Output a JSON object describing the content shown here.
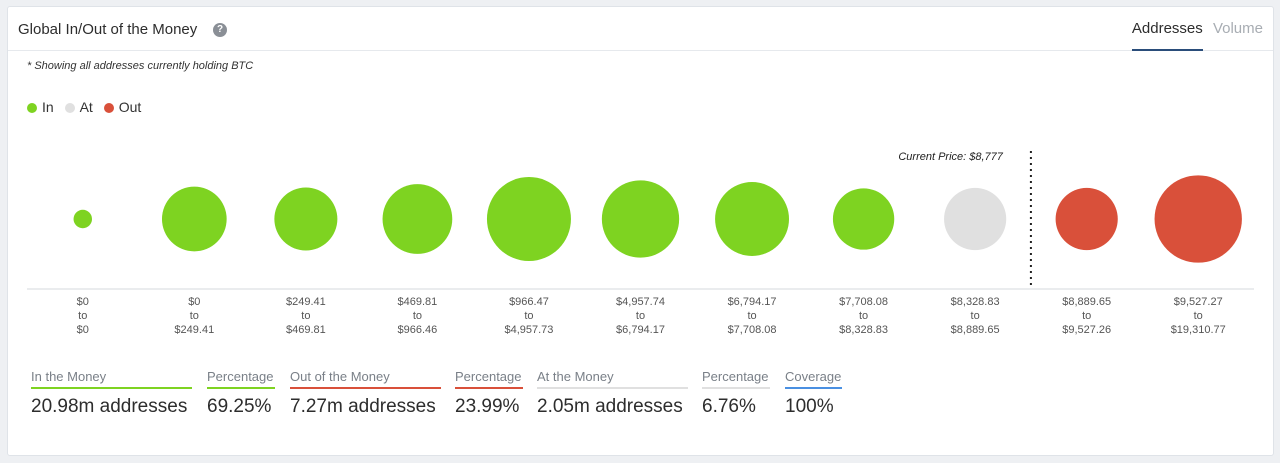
{
  "header": {
    "title": "Global In/Out of the Money",
    "help_icon": "question-circle-icon",
    "tabs": [
      {
        "label": "Addresses",
        "active": true
      },
      {
        "label": "Volume",
        "active": false
      }
    ]
  },
  "note": "* Showing all addresses currently holding BTC",
  "legend": [
    {
      "label": "In",
      "color": "#7ed321"
    },
    {
      "label": "At",
      "color": "#e0e0e0"
    },
    {
      "label": "Out",
      "color": "#d9503a"
    }
  ],
  "current_price_label": "Current Price: $8,777",
  "chart_data": {
    "type": "scatter",
    "encoding": "bubble size = relative number of addresses per price range",
    "current_price": 8777,
    "categories": [
      {
        "from": "$0",
        "to": "$0",
        "status": "In",
        "relative_size": 0.22
      },
      {
        "from": "$0",
        "to": "$249.41",
        "status": "In",
        "relative_size": 0.77
      },
      {
        "from": "$249.41",
        "to": "$469.81",
        "status": "In",
        "relative_size": 0.75
      },
      {
        "from": "$469.81",
        "to": "$966.46",
        "status": "In",
        "relative_size": 0.83
      },
      {
        "from": "$966.47",
        "to": "$4,957.73",
        "status": "In",
        "relative_size": 1.0
      },
      {
        "from": "$4,957.74",
        "to": "$6,794.17",
        "status": "In",
        "relative_size": 0.92
      },
      {
        "from": "$6,794.17",
        "to": "$7,708.08",
        "status": "In",
        "relative_size": 0.88
      },
      {
        "from": "$7,708.08",
        "to": "$8,328.83",
        "status": "In",
        "relative_size": 0.73
      },
      {
        "from": "$8,328.83",
        "to": "$8,889.65",
        "status": "At",
        "relative_size": 0.74
      },
      {
        "from": "$8,889.65",
        "to": "$9,527.26",
        "status": "Out",
        "relative_size": 0.74
      },
      {
        "from": "$9,527.27",
        "to": "$19,310.77",
        "status": "Out",
        "relative_size": 1.04
      }
    ],
    "to_word": "to",
    "colors": {
      "In": "#7ed321",
      "At": "#e0e0e0",
      "Out": "#d9503a"
    }
  },
  "summary": [
    {
      "label": "In the Money",
      "value": "20.98m addresses",
      "color": "#7ed321"
    },
    {
      "label": "Percentage",
      "value": "69.25%",
      "color": "#7ed321"
    },
    {
      "label": "Out of the Money",
      "value": "7.27m addresses",
      "color": "#d9503a"
    },
    {
      "label": "Percentage",
      "value": "23.99%",
      "color": "#d9503a"
    },
    {
      "label": "At the Money",
      "value": "2.05m addresses",
      "color": "#e0e0e0"
    },
    {
      "label": "Percentage",
      "value": "6.76%",
      "color": "#e0e0e0"
    },
    {
      "label": "Coverage",
      "value": "100%",
      "color": "#4a90e2"
    }
  ]
}
